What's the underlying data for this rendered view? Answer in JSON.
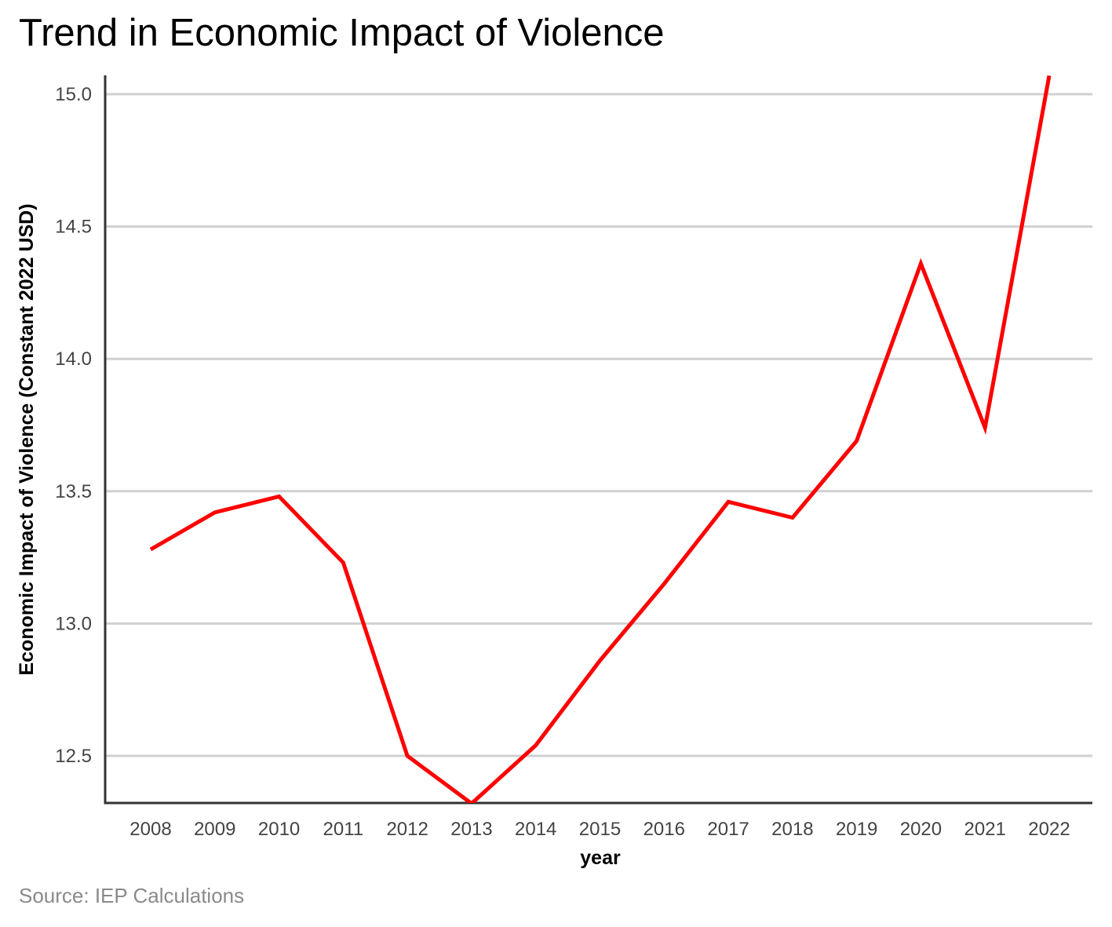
{
  "chart_data": {
    "type": "line",
    "title": "Trend in Economic Impact of Violence",
    "xlabel": "year",
    "ylabel": "Economic Impact of Violence (Constant 2022 USD)",
    "source": "Source: IEP Calculations",
    "x": [
      2008,
      2009,
      2010,
      2011,
      2012,
      2013,
      2014,
      2015,
      2016,
      2017,
      2018,
      2019,
      2020,
      2021,
      2022
    ],
    "yticks": [
      "12.5",
      "13.0",
      "13.5",
      "14.0",
      "14.5",
      "15.0"
    ],
    "ylim": [
      12.32,
      15.07
    ],
    "series": [
      {
        "values": [
          13.28,
          13.42,
          13.48,
          13.23,
          12.5,
          12.32,
          12.54,
          12.86,
          13.15,
          13.46,
          13.4,
          13.69,
          14.36,
          13.74,
          15.07
        ],
        "color": "#ff0000"
      }
    ],
    "grid": "horizontal",
    "colors": {
      "line": "#ff0000",
      "grid": "#d0d0d0",
      "axis": "#333333",
      "source_text": "#8a8a8a"
    }
  }
}
